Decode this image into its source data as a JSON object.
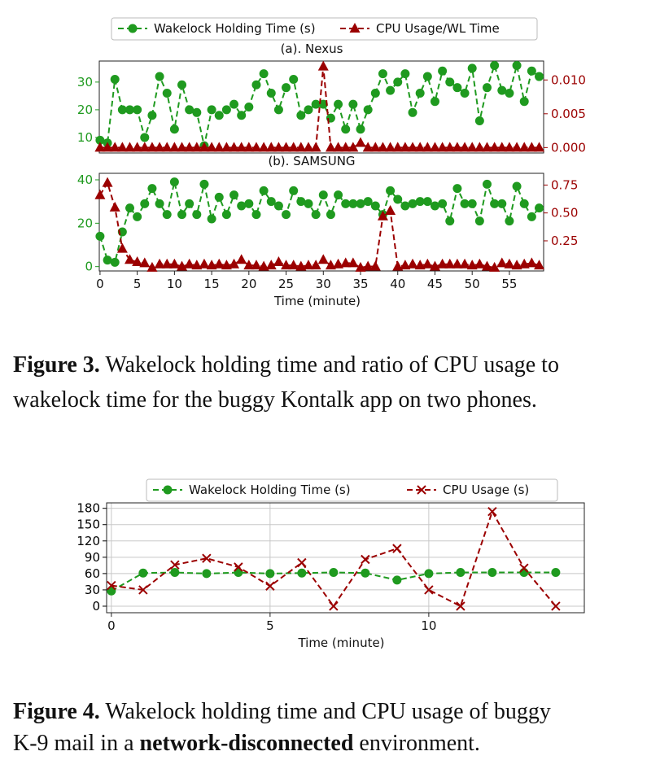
{
  "chart_data": [
    {
      "type": "line",
      "subtitle": "(a). Nexus",
      "legend": "upper center",
      "x": [
        0,
        1,
        2,
        3,
        4,
        5,
        6,
        7,
        8,
        9,
        10,
        11,
        12,
        13,
        14,
        15,
        16,
        17,
        18,
        19,
        20,
        21,
        22,
        23,
        24,
        25,
        26,
        27,
        28,
        29,
        30,
        31,
        32,
        33,
        34,
        35,
        36,
        37,
        38,
        39,
        40,
        41,
        42,
        43,
        44,
        45,
        46,
        47,
        48,
        49,
        50,
        51,
        52,
        53,
        54,
        55,
        56,
        57,
        58,
        59
      ],
      "xlim": [
        -0.1,
        59.6
      ],
      "ylim": [
        4.4,
        37.6
      ],
      "yticks": [
        10,
        20,
        30
      ],
      "y2lim": [
        -0.0008,
        0.0128
      ],
      "y2ticks": [
        {
          "value": 0,
          "label": "0.000"
        },
        0.005,
        {
          "value": 0.01,
          "label": "0.010"
        }
      ],
      "series": [
        {
          "name": "Wakelock Holding Time (s)",
          "color": "#1f9a1f",
          "marker": "o",
          "values": [
            9,
            8,
            31,
            20,
            20,
            20,
            10,
            18,
            32,
            26,
            13,
            29,
            20,
            19,
            7,
            20,
            18,
            20,
            22,
            18,
            21,
            29,
            33,
            26,
            20,
            28,
            31,
            18,
            20,
            22,
            22,
            17,
            22,
            13,
            22,
            13,
            20,
            26,
            33,
            27,
            30,
            33,
            19,
            26,
            32,
            23,
            34,
            30,
            28,
            26,
            35,
            16,
            28,
            36,
            27,
            26,
            36,
            23,
            34,
            32
          ]
        },
        {
          "name": "CPU Usage/WL Time",
          "color": "#9b0000",
          "marker": "^",
          "axis": "y2",
          "values": [
            0,
            0,
            0,
            0,
            0,
            0,
            0,
            0,
            0,
            0,
            0,
            0,
            0,
            0,
            0,
            0,
            0,
            0,
            0,
            0,
            0,
            0,
            0,
            0,
            0,
            0,
            0,
            0,
            0,
            0,
            0.012,
            0,
            0,
            0,
            0,
            0.0007,
            0,
            0,
            0,
            0,
            0,
            0,
            0,
            0,
            0,
            0,
            0,
            0,
            0,
            0,
            0,
            0,
            0,
            0,
            0,
            0,
            0,
            0,
            0,
            0
          ]
        }
      ]
    },
    {
      "type": "line",
      "subtitle": "(b). SAMSUNG",
      "xlabel": "Time (minute)",
      "x": [
        0,
        1,
        2,
        3,
        4,
        5,
        6,
        7,
        8,
        9,
        10,
        11,
        12,
        13,
        14,
        15,
        16,
        17,
        18,
        19,
        20,
        21,
        22,
        23,
        24,
        25,
        26,
        27,
        28,
        29,
        30,
        31,
        32,
        33,
        34,
        35,
        36,
        37,
        38,
        39,
        40,
        41,
        42,
        43,
        44,
        45,
        46,
        47,
        48,
        49,
        50,
        51,
        52,
        53,
        54,
        55,
        56,
        57,
        58,
        59
      ],
      "xlim": [
        -0.1,
        59.6
      ],
      "xticks": [
        0,
        5,
        10,
        15,
        20,
        25,
        30,
        35,
        40,
        45,
        50,
        55
      ],
      "ylim": [
        -2,
        43
      ],
      "yticks": [
        0,
        20,
        40
      ],
      "y2lim": [
        -0.02,
        0.855
      ],
      "y2ticks": [
        0.25,
        {
          "value": 0.5,
          "label": "0.50"
        },
        0.75
      ],
      "series": [
        {
          "color": "#1f9a1f",
          "marker": "o",
          "values": [
            14,
            3,
            2,
            16,
            27,
            23,
            29,
            36,
            29,
            24,
            39,
            24,
            29,
            24,
            38,
            22,
            32,
            24,
            33,
            28,
            29,
            24,
            35,
            30,
            28,
            24,
            35,
            30,
            29,
            24,
            33,
            24,
            33,
            29,
            29,
            29,
            30,
            28,
            24,
            35,
            31,
            28,
            29,
            30,
            30,
            28,
            29,
            21,
            36,
            29,
            29,
            21,
            38,
            29,
            29,
            21,
            37,
            29,
            23,
            27
          ]
        },
        {
          "color": "#9b0000",
          "marker": "^",
          "axis": "y2",
          "values": [
            0.66,
            0.77,
            0.55,
            0.18,
            0.08,
            0.06,
            0.05,
            0.01,
            0.04,
            0.04,
            0.04,
            0.02,
            0.04,
            0.03,
            0.04,
            0.03,
            0.04,
            0.03,
            0.04,
            0.08,
            0.03,
            0.03,
            0.02,
            0.03,
            0.06,
            0.03,
            0.03,
            0.02,
            0.03,
            0.03,
            0.08,
            0.03,
            0.04,
            0.05,
            0.05,
            0.01,
            0.02,
            0.02,
            0.47,
            0.52,
            0.02,
            0.03,
            0.04,
            0.03,
            0.04,
            0.02,
            0.04,
            0.04,
            0.04,
            0.04,
            0.03,
            0.04,
            0.02,
            0.01,
            0.05,
            0.04,
            0.03,
            0.04,
            0.05,
            0.03
          ]
        }
      ]
    },
    {
      "type": "line",
      "legend": "upper center",
      "xlabel": "Time (minute)",
      "grid": true,
      "x": [
        0,
        1,
        2,
        3,
        4,
        5,
        6,
        7,
        8,
        9,
        10,
        11,
        12,
        13,
        14
      ],
      "xlim": [
        -0.15,
        14.9
      ],
      "xticks": [
        0,
        5,
        10
      ],
      "ylim": [
        -12,
        190
      ],
      "yticks": [
        0,
        30,
        60,
        90,
        120,
        150,
        180
      ],
      "series": [
        {
          "name": "Wakelock Holding Time (s)",
          "color": "#1f9a1f",
          "marker": "o",
          "values": [
            28,
            61,
            62,
            60,
            62,
            60,
            61,
            62,
            61,
            48,
            60,
            62,
            62,
            62,
            62
          ]
        },
        {
          "name": "CPU Usage (s)",
          "color": "#9b0000",
          "marker": "x",
          "values": [
            38,
            30,
            76,
            88,
            72,
            37,
            80,
            0,
            86,
            106,
            30,
            0,
            174,
            70,
            0
          ]
        }
      ]
    }
  ],
  "captions": [
    {
      "label": "Figure 3.",
      "line1": "Wakelock holding time and ratio of CPU usage to",
      "line2": "wakelock time for the buggy Kontalk app on two phones."
    },
    {
      "label": "Figure 4.",
      "line1": "Wakelock holding time and CPU usage of buggy",
      "line2_before": "K-9 mail in a",
      "line2_bold": "network-disconnected",
      "line2_after": "environment."
    }
  ]
}
